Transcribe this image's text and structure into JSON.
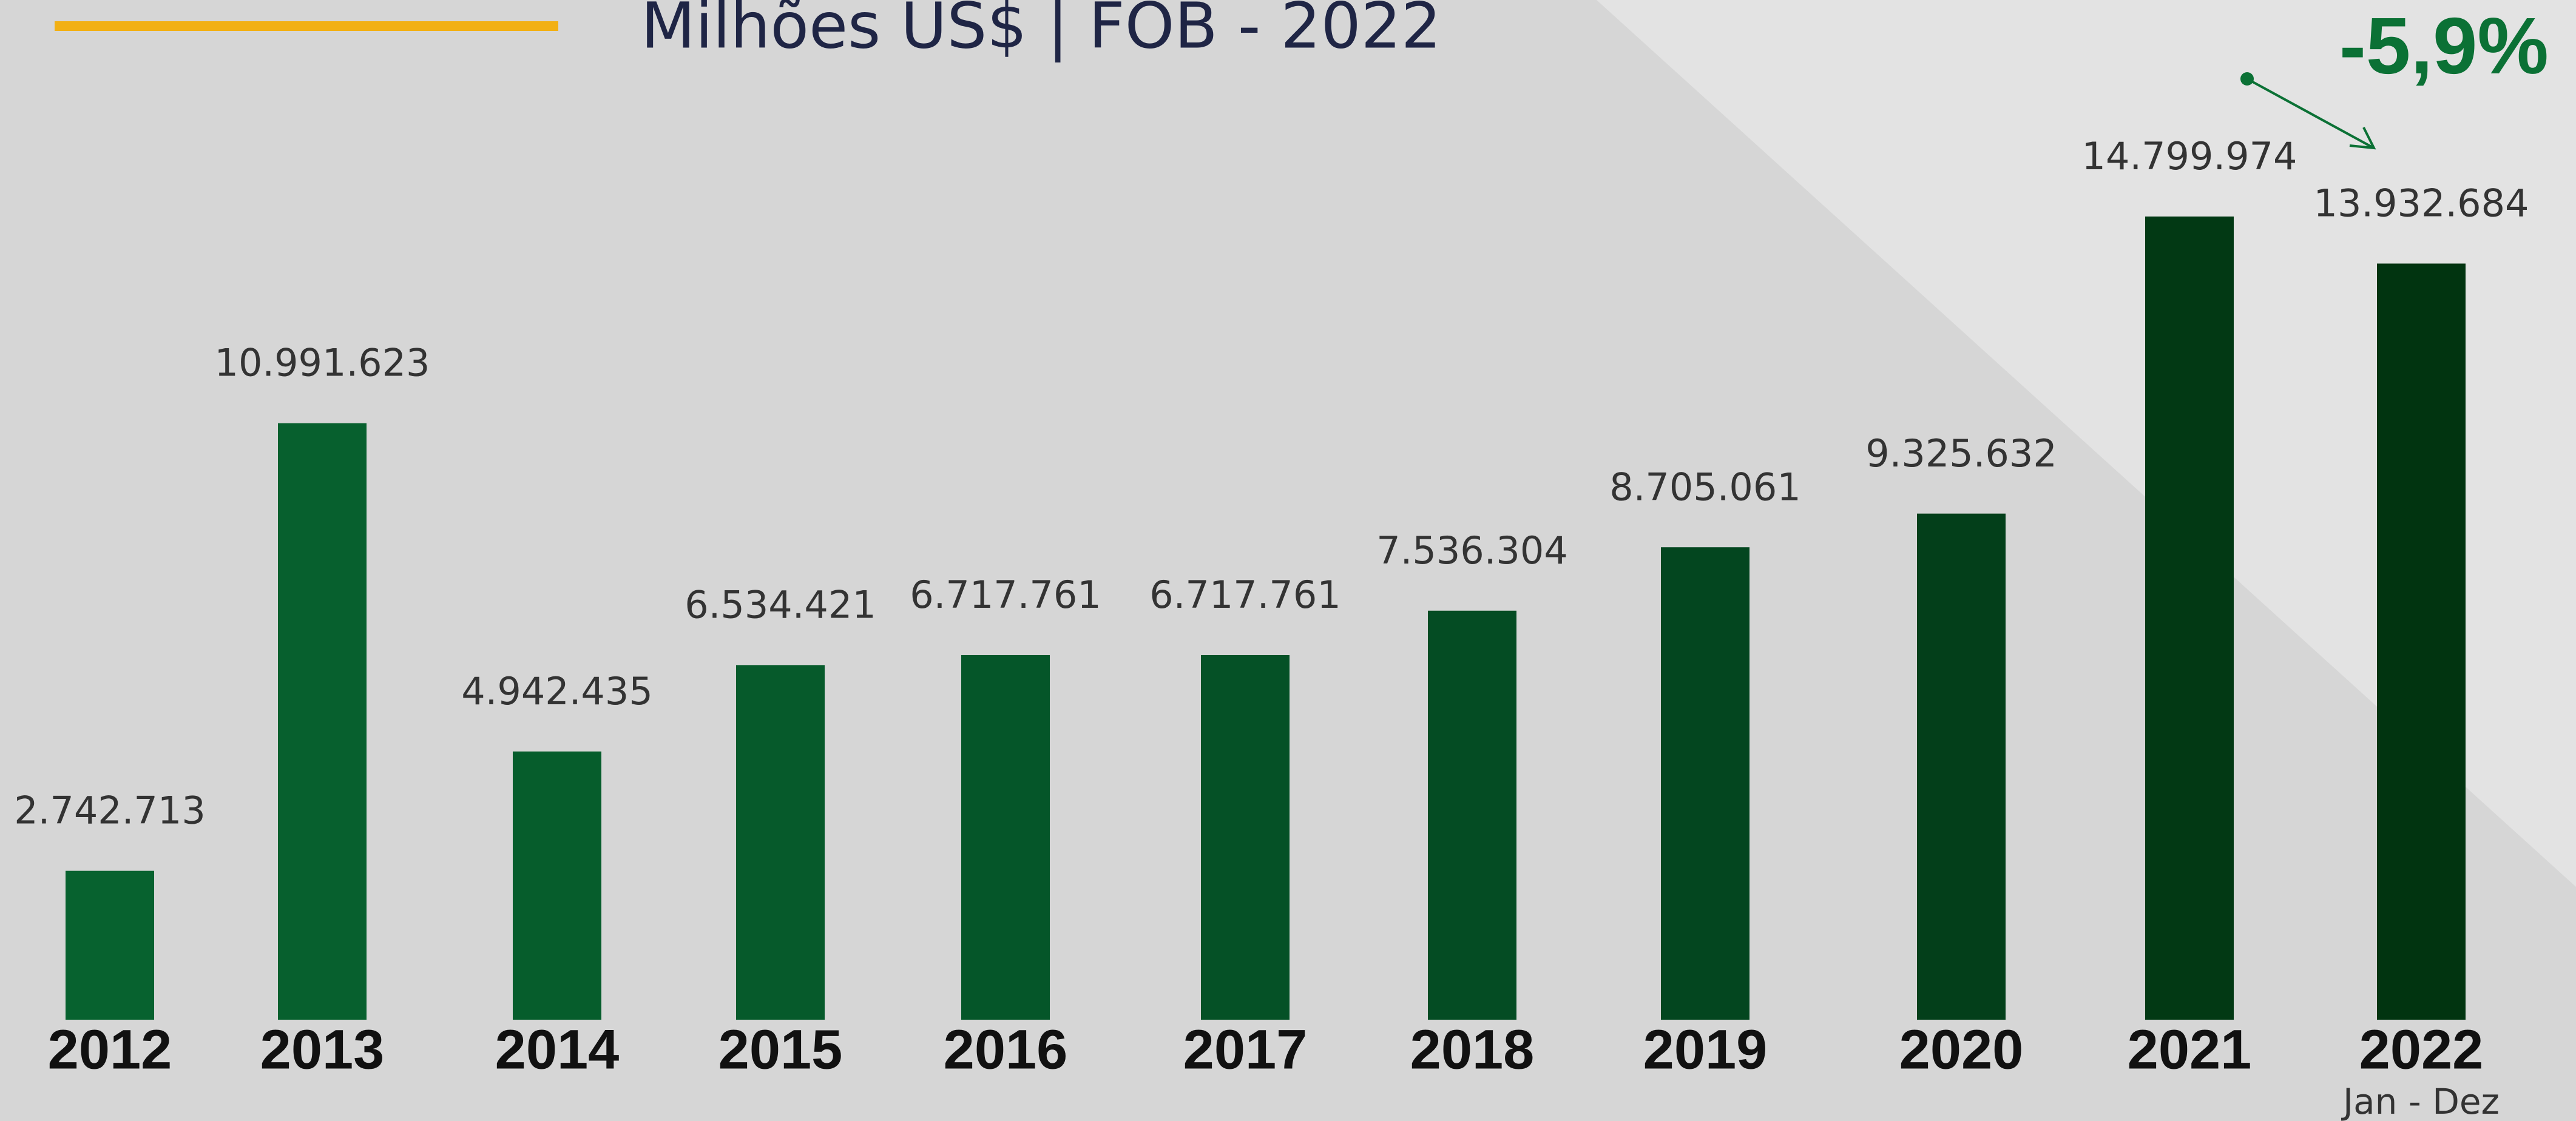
{
  "chart_data": {
    "type": "bar",
    "title": "Milhões US$ | FOB - 2022",
    "annotation": "-5,9%",
    "category_note": "Jan - Dez",
    "categories": [
      "2012",
      "2013",
      "2014",
      "2015",
      "2016",
      "2017",
      "2018",
      "2019",
      "2020",
      "2021",
      "2022"
    ],
    "values": [
      2742713,
      10991623,
      4942435,
      6534421,
      6717761,
      6717761,
      7536304,
      8705061,
      9325632,
      14799974,
      13932684
    ],
    "value_labels": [
      "2.742.713",
      "10.991.623",
      "4.942.435",
      "6.534.421",
      "6.717.761",
      "6.717.761",
      "7.536.304",
      "8.705.061",
      "9.325.632",
      "14.799.974",
      "13.932.684"
    ],
    "colors": [
      "#07622f",
      "#07602e",
      "#065d2c",
      "#065a2b",
      "#055629",
      "#055126",
      "#044c23",
      "#03461f",
      "#033f1a",
      "#023914",
      "#013410"
    ],
    "ylim": [
      0,
      15000000
    ]
  }
}
